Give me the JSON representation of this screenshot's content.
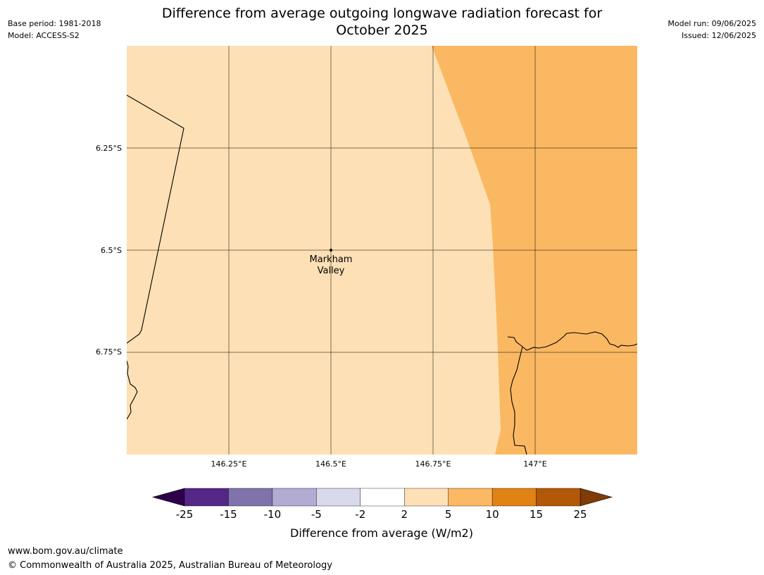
{
  "header": {
    "title_line1": "Difference from average outgoing longwave radiation forecast for",
    "title_line2": "October 2025",
    "base_period": "Base period: 1981-2018",
    "model": "Model: ACCESS-S2",
    "model_run": "Model run: 09/06/2025",
    "issued": "Issued: 12/06/2025"
  },
  "map": {
    "lat_labels": [
      "6.25°S",
      "6.5°S",
      "6.75°S"
    ],
    "lon_labels": [
      "146.25°E",
      "146.5°E",
      "146.75°E",
      "147°E"
    ],
    "place": {
      "name_line1": "Markham",
      "name_line2": "Valley"
    },
    "fill_colors": {
      "band_2_to_5": "#fde0b5",
      "band_5_to_10": "#fbb862"
    }
  },
  "colorbar": {
    "label": "Difference from average (W/m2)",
    "ticks": [
      "-25",
      "-15",
      "-10",
      "-5",
      "-2",
      "2",
      "5",
      "10",
      "15",
      "25"
    ],
    "extend_low_color": "#2d004b",
    "extend_high_color": "#7f3b08",
    "colors": [
      "#542788",
      "#8073ac",
      "#b2abd2",
      "#d8daeb",
      "#ffffff",
      "#fee0b6",
      "#fdb863",
      "#e08214",
      "#b35806"
    ]
  },
  "footer": {
    "url": "www.bom.gov.au/climate",
    "copyright": "© Commonwealth of Australia 2025, Australian Bureau of Meteorology"
  }
}
